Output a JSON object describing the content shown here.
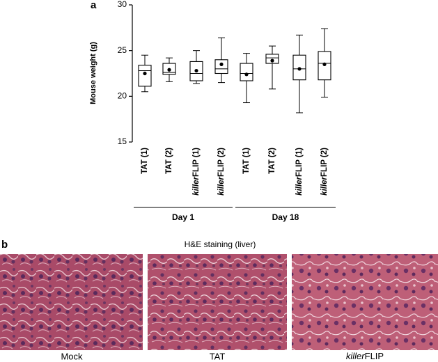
{
  "chart_data": {
    "type": "box",
    "panel_label": "a",
    "y_label": "Mouse weight (g)",
    "ylim": [
      15,
      30
    ],
    "yticks": [
      15,
      20,
      25,
      30
    ],
    "groups": [
      {
        "label": "Day 1",
        "categories": [
          "TAT (1)",
          "TAT (2)",
          "killerFLIP (1)",
          "killerFLIP (2)"
        ],
        "boxes": [
          {
            "min": 20.5,
            "q1": 21.1,
            "median": 22.8,
            "q3": 23.4,
            "max": 24.5,
            "mean": 22.5
          },
          {
            "min": 21.6,
            "q1": 22.4,
            "median": 22.6,
            "q3": 23.6,
            "max": 24.2,
            "mean": 22.9
          },
          {
            "min": 21.4,
            "q1": 21.7,
            "median": 22.5,
            "q3": 23.8,
            "max": 25.0,
            "mean": 22.8
          },
          {
            "min": 21.5,
            "q1": 22.5,
            "median": 23.0,
            "q3": 24.0,
            "max": 26.4,
            "mean": 23.5
          }
        ]
      },
      {
        "label": "Day 18",
        "categories": [
          "TAT (1)",
          "TAT (2)",
          "killerFLIP (1)",
          "killerFLIP (2)"
        ],
        "boxes": [
          {
            "min": 19.3,
            "q1": 21.7,
            "median": 22.5,
            "q3": 23.6,
            "max": 24.7,
            "mean": 22.4
          },
          {
            "min": 20.8,
            "q1": 23.6,
            "median": 24.2,
            "q3": 24.6,
            "max": 25.5,
            "mean": 23.9
          },
          {
            "min": 18.2,
            "q1": 21.8,
            "median": 23.0,
            "q3": 24.5,
            "max": 26.7,
            "mean": 23.0
          },
          {
            "min": 19.9,
            "q1": 21.8,
            "median": 23.6,
            "q3": 24.9,
            "max": 27.4,
            "mean": 23.5
          }
        ]
      }
    ]
  },
  "panel_b": {
    "label": "b",
    "title": "H&E staining (liver)",
    "images": [
      {
        "caption": "Mock"
      },
      {
        "caption": "TAT"
      },
      {
        "caption": "killerFLIP"
      }
    ]
  }
}
